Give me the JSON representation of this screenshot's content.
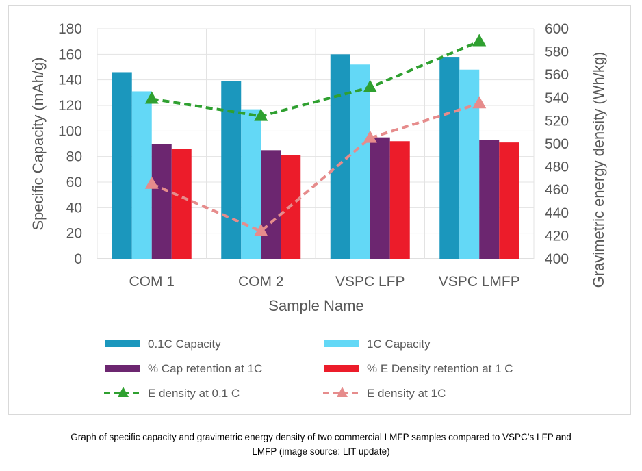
{
  "chart_data": {
    "type": "bar",
    "title": "",
    "xlabel": "Sample Name",
    "ylabel": "Specific Capacity (mAh/g)",
    "y2label": "Gravimetric energy density (Wh/kg)",
    "ylim": [
      0,
      180
    ],
    "y2lim": [
      400,
      600
    ],
    "yticks": [
      "0",
      "20",
      "40",
      "60",
      "80",
      "100",
      "120",
      "140",
      "160",
      "180"
    ],
    "y2ticks": [
      "400",
      "420",
      "440",
      "460",
      "480",
      "500",
      "520",
      "540",
      "560",
      "580",
      "600"
    ],
    "grid": true,
    "legend_position": "bottom",
    "categories": [
      "COM 1",
      "COM 2",
      "VSPC LFP",
      "VSPC LMFP"
    ],
    "series": [
      {
        "name": "0.1C Capacity",
        "type": "bar",
        "axis": "left",
        "color": "#1b97bd",
        "values": [
          146,
          139,
          160,
          158
        ]
      },
      {
        "name": "1C Capacity",
        "type": "bar",
        "axis": "left",
        "color": "#63d8f6",
        "values": [
          131,
          117,
          152,
          148
        ]
      },
      {
        "name": "% Cap retention at 1C",
        "type": "bar",
        "axis": "left",
        "color": "#6c2670",
        "values": [
          90,
          85,
          95,
          93
        ]
      },
      {
        "name": "% E Density retention at 1 C",
        "type": "bar",
        "axis": "left",
        "color": "#ec1c2a",
        "values": [
          86,
          81,
          92,
          91
        ]
      },
      {
        "name": "E density  at 0.1 C",
        "type": "line",
        "axis": "right",
        "color": "#2fa030",
        "dash": "dashed",
        "marker": "triangle",
        "values": [
          539,
          524,
          549,
          589
        ]
      },
      {
        "name": "E density at 1C",
        "type": "line",
        "axis": "right",
        "color": "#e68c8c",
        "dash": "dashed",
        "marker": "triangle",
        "values": [
          465,
          424,
          505,
          535
        ]
      }
    ]
  },
  "caption": {
    "line1": "Graph of specific capacity and gravimetric energy density of two commercial LMFP samples compared to VSPC’s LFP and",
    "line2": "LMFP (image source: LIT update)"
  }
}
